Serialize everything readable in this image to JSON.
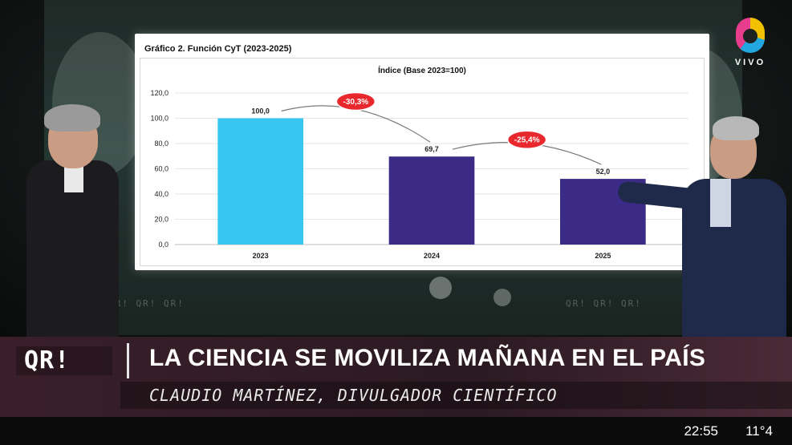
{
  "broadcast": {
    "channel_logo_text": "VIVO",
    "program_brand": "QR!",
    "headline": "LA CIENCIA SE MOVILIZA MAÑANA EN EL PAÍS",
    "subtitle": "CLAUDIO MARTÍNEZ, DIVULGADOR CIENTÍFICO",
    "clock": "22:55",
    "temperature": "11°4",
    "wall_deco_text": "QR! QR! QR!"
  },
  "chart_data": {
    "type": "bar",
    "title": "Gráfico 2. Función CyT (2023-2025)",
    "subtitle": "Índice (Base 2023=100)",
    "categories": [
      "2023",
      "2024",
      "2025"
    ],
    "values": [
      100.0,
      69.7,
      52.0
    ],
    "value_labels": [
      "100,0",
      "69,7",
      "52,0"
    ],
    "bar_colors": [
      "#38c6f0",
      "#3b2a86",
      "#3b2a86"
    ],
    "ylim": [
      0,
      120
    ],
    "yticks": [
      "0,0",
      "20,0",
      "40,0",
      "60,0",
      "80,0",
      "100,0",
      "120,0"
    ],
    "grid": true,
    "annotations": [
      {
        "label": "-30,3%",
        "from": "2023",
        "to": "2024"
      },
      {
        "label": "-25,4%",
        "from": "2024",
        "to": "2025"
      }
    ],
    "annotation_color": "#e8282c"
  }
}
